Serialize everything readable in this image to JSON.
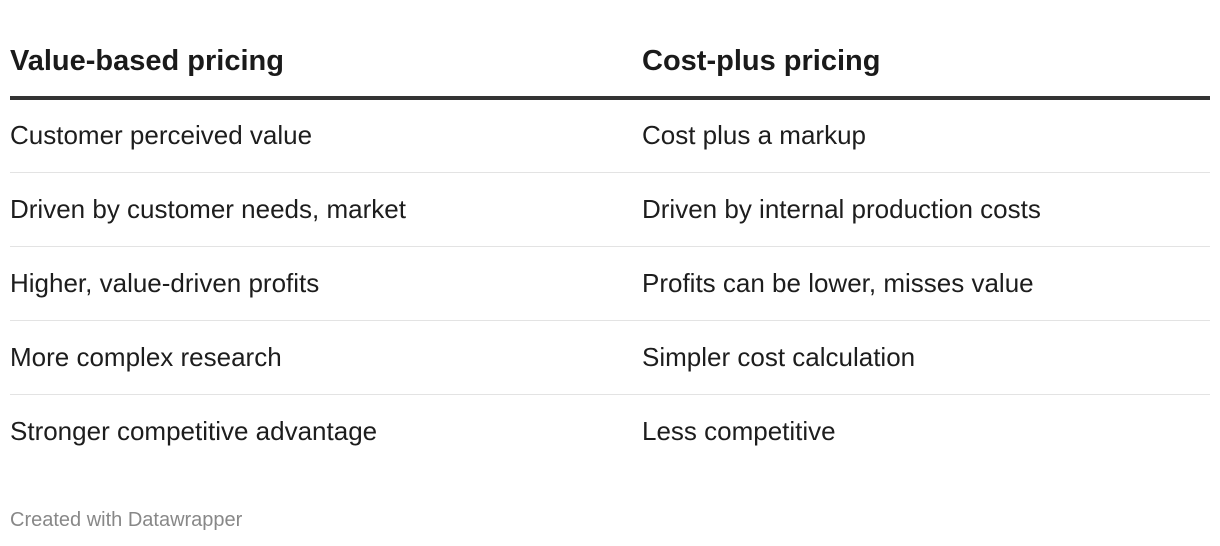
{
  "chart_data": {
    "type": "table",
    "columns": [
      "Value-based pricing",
      "Cost-plus pricing"
    ],
    "rows": [
      [
        "Customer perceived value",
        "Cost plus a markup"
      ],
      [
        "Driven by customer needs, market",
        "Driven by internal production costs"
      ],
      [
        "Higher, value-driven profits",
        "Profits can be lower, misses value"
      ],
      [
        "More complex research",
        "Simpler cost calculation"
      ],
      [
        "Stronger competitive advantage",
        "Less competitive"
      ]
    ]
  },
  "footer": {
    "credit": "Created with Datawrapper"
  },
  "colors": {
    "header_rule": "#333333",
    "row_rule": "#e3e3e3",
    "text": "#1d1d1d",
    "footer_text": "#888888"
  }
}
